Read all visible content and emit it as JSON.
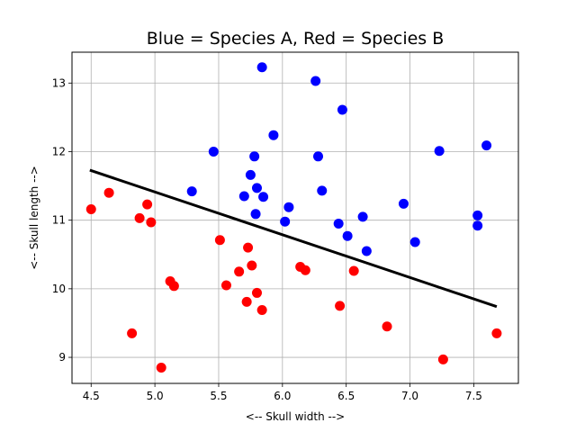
{
  "chart_data": {
    "type": "scatter",
    "title": "Blue = Species A, Red = Species B",
    "xlabel": "<-- Skull width -->",
    "ylabel": "<-- Skull length -->",
    "xlim": [
      4.35,
      7.85
    ],
    "ylim": [
      8.62,
      13.45
    ],
    "xticks": [
      4.5,
      5.0,
      5.5,
      6.0,
      6.5,
      7.0,
      7.5
    ],
    "xtick_labels": [
      "4.5",
      "5.0",
      "5.5",
      "6.0",
      "6.5",
      "7.0",
      "7.5"
    ],
    "yticks": [
      9,
      10,
      11,
      12,
      13
    ],
    "ytick_labels": [
      "9",
      "10",
      "11",
      "12",
      "13"
    ],
    "grid": true,
    "colors": {
      "species_a": "#0000ff",
      "species_b": "#ff0000",
      "line": "#000000",
      "grid": "#b0b0b0"
    },
    "series": [
      {
        "color": "#0000ff",
        "points": [
          [
            5.29,
            11.42
          ],
          [
            5.46,
            12.0
          ],
          [
            5.7,
            11.35
          ],
          [
            5.75,
            11.66
          ],
          [
            5.78,
            11.93
          ],
          [
            5.79,
            11.09
          ],
          [
            5.8,
            11.47
          ],
          [
            5.84,
            13.23
          ],
          [
            5.85,
            11.34
          ],
          [
            5.93,
            12.24
          ],
          [
            6.02,
            10.98
          ],
          [
            6.05,
            11.19
          ],
          [
            6.26,
            13.03
          ],
          [
            6.28,
            11.93
          ],
          [
            6.31,
            11.43
          ],
          [
            6.44,
            10.95
          ],
          [
            6.47,
            12.61
          ],
          [
            6.51,
            10.77
          ],
          [
            6.63,
            11.05
          ],
          [
            6.66,
            10.55
          ],
          [
            6.95,
            11.24
          ],
          [
            7.04,
            10.68
          ],
          [
            7.23,
            12.01
          ],
          [
            7.53,
            11.07
          ],
          [
            7.53,
            10.92
          ],
          [
            7.6,
            12.09
          ]
        ]
      },
      {
        "color": "#ff0000",
        "points": [
          [
            4.5,
            11.16
          ],
          [
            4.64,
            11.4
          ],
          [
            4.82,
            9.35
          ],
          [
            4.88,
            11.03
          ],
          [
            4.94,
            11.23
          ],
          [
            4.97,
            10.97
          ],
          [
            5.05,
            8.85
          ],
          [
            5.12,
            10.11
          ],
          [
            5.15,
            10.04
          ],
          [
            5.51,
            10.71
          ],
          [
            5.56,
            10.05
          ],
          [
            5.66,
            10.25
          ],
          [
            5.72,
            9.81
          ],
          [
            5.73,
            10.6
          ],
          [
            5.76,
            10.34
          ],
          [
            5.8,
            9.94
          ],
          [
            5.84,
            9.69
          ],
          [
            6.14,
            10.32
          ],
          [
            6.18,
            10.27
          ],
          [
            6.45,
            9.75
          ],
          [
            6.56,
            10.26
          ],
          [
            6.82,
            9.45
          ],
          [
            7.26,
            8.97
          ],
          [
            7.68,
            9.35
          ]
        ]
      }
    ],
    "line": {
      "x": [
        4.49,
        7.68
      ],
      "y": [
        11.73,
        9.74
      ]
    }
  }
}
